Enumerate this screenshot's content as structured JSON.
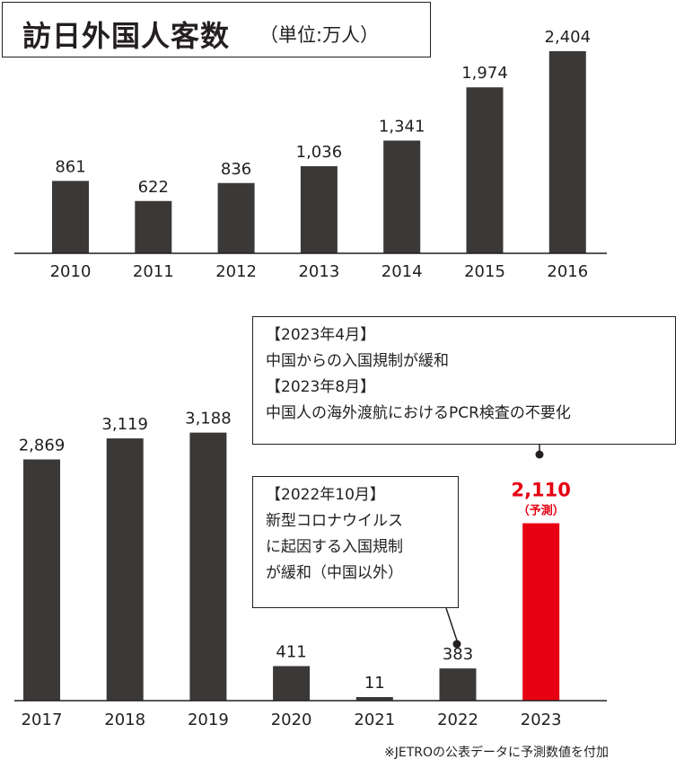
{
  "title": {
    "main": "訪日外国人客数",
    "unit": "（単位:万人）"
  },
  "chart_data": [
    {
      "type": "bar",
      "categories": [
        "2010",
        "2011",
        "2012",
        "2013",
        "2014",
        "2015",
        "2016"
      ],
      "values": [
        861,
        622,
        836,
        1036,
        1341,
        1974,
        2404
      ],
      "value_labels": [
        "861",
        "622",
        "836",
        "1,036",
        "1,341",
        "1,974",
        "2,404"
      ],
      "bar_color": "#3b3838"
    },
    {
      "type": "bar",
      "categories": [
        "2017",
        "2018",
        "2019",
        "2020",
        "2021",
        "2022",
        "2023"
      ],
      "values": [
        2869,
        3119,
        3188,
        411,
        11,
        383,
        2110
      ],
      "value_labels": [
        "2,869",
        "3,119",
        "3,188",
        "411",
        "11",
        "383",
        "2,110"
      ],
      "bar_color": "#3b3838",
      "highlight": {
        "category": "2023",
        "color": "#e60012",
        "sublabel": "（予測）"
      }
    }
  ],
  "callouts": {
    "upper": [
      "【2023年4月】",
      "中国からの入国規制が緩和",
      "【2023年8月】",
      "中国人の海外渡航におけるPCR検査の不要化"
    ],
    "lower": [
      "【2022年10月】",
      "新型コロナウイルス",
      "に起因する入国規制",
      "が緩和（中国以外）"
    ]
  },
  "footnote": "※JETROの公表データに予測数値を付加"
}
